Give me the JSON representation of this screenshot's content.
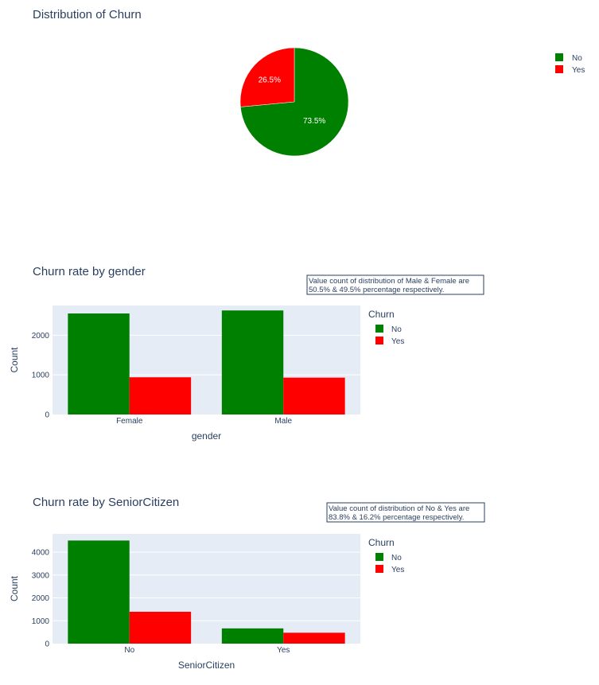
{
  "chart_data": [
    {
      "type": "pie",
      "title": "Distribution of Churn",
      "labels": [
        "No",
        "Yes"
      ],
      "values": [
        73.5,
        26.5
      ],
      "value_labels": [
        "73.5%",
        "26.5%"
      ],
      "colors": [
        "#008000",
        "#ff0000"
      ],
      "legend": [
        "No",
        "Yes"
      ],
      "legend_position": "top-right"
    },
    {
      "type": "bar",
      "title": "Churn rate by gender",
      "categories": [
        "Female",
        "Male"
      ],
      "xlabel": "gender",
      "ylabel": "Count",
      "ylim": [
        0,
        2750
      ],
      "yticks": [
        "0",
        "1000",
        "2000"
      ],
      "legend_title": "Churn",
      "series": [
        {
          "name": "No",
          "color": "#008000",
          "values": [
            2549,
            2625
          ]
        },
        {
          "name": "Yes",
          "color": "#ff0000",
          "values": [
            939,
            930
          ]
        }
      ],
      "annotation": [
        "Value count of distribution of Male & Female are",
        "50.5% & 49.5% percentage respectively."
      ],
      "grid": true,
      "legend_position": "right"
    },
    {
      "type": "bar",
      "title": "Churn rate by SeniorCitizen",
      "categories": [
        "No",
        "Yes"
      ],
      "xlabel": "SeniorCitizen",
      "ylabel": "Count",
      "ylim": [
        0,
        4800
      ],
      "yticks": [
        "0",
        "1000",
        "2000",
        "3000",
        "4000"
      ],
      "legend_title": "Churn",
      "series": [
        {
          "name": "No",
          "color": "#008000",
          "values": [
            4508,
            666
          ]
        },
        {
          "name": "Yes",
          "color": "#ff0000",
          "values": [
            1393,
            476
          ]
        }
      ],
      "annotation": [
        "Value count of distribution of No & Yes are",
        "83.8% & 16.2% percentage respectively."
      ],
      "grid": true,
      "legend_position": "right"
    }
  ]
}
